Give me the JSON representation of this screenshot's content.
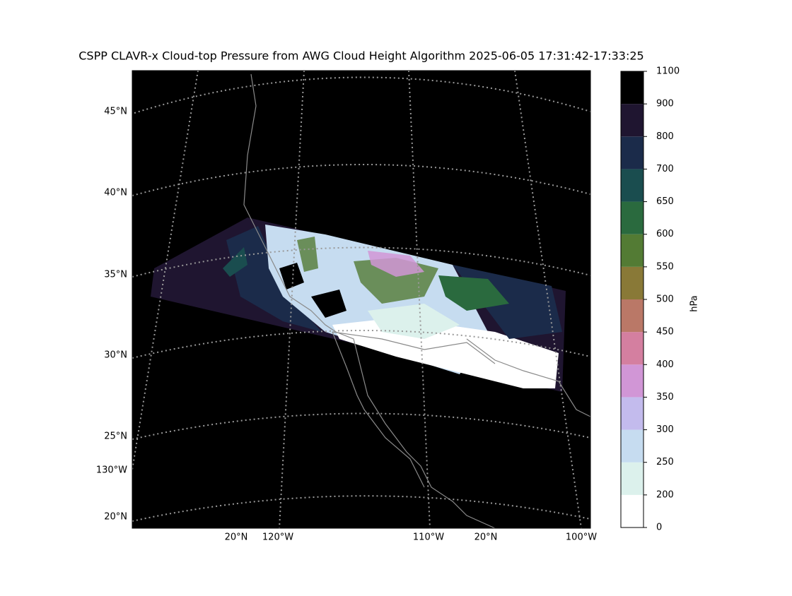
{
  "map": {
    "title": "CSPP CLAVR-x Cloud-top Pressure from AWG Cloud Height Algorithm 2025-06-05 17:31:42-17:33:25",
    "left_labels": [
      "45°N",
      "40°N",
      "35°N",
      "30°N",
      "25°N",
      "130°W",
      "20°N"
    ],
    "bottom_labels": [
      "20°N",
      "120°W",
      "110°W",
      "20°N",
      "100°W"
    ]
  },
  "colorbar": {
    "label": "hPa",
    "boundaries": [
      0,
      200,
      250,
      300,
      350,
      400,
      450,
      500,
      550,
      600,
      650,
      700,
      800,
      900,
      1100
    ],
    "colors": [
      "#ffffff",
      "#dcf1ec",
      "#c6dcf0",
      "#c3bbed",
      "#d196d6",
      "#d47fa0",
      "#ba7867",
      "#897937",
      "#537b34",
      "#2a6a3e",
      "#1a4d4f",
      "#1b2b4a",
      "#1f1530",
      "#000000"
    ]
  }
}
